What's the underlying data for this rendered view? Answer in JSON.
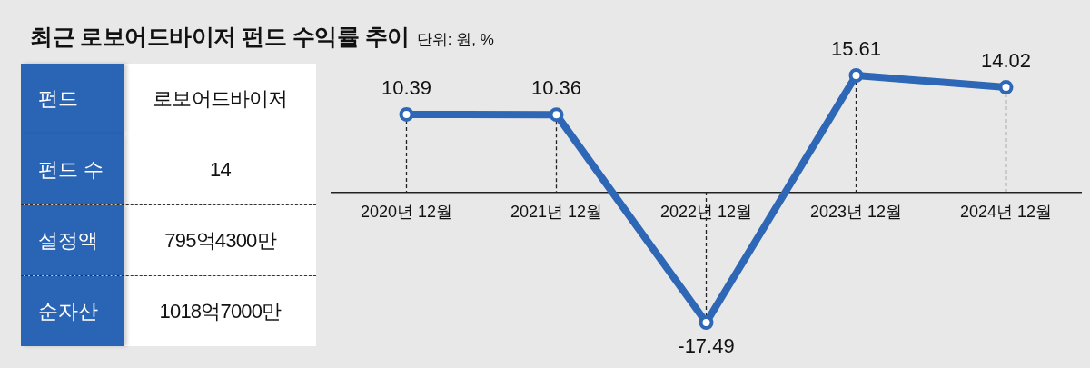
{
  "chart_data": [
    {
      "type": "other",
      "categories": [
        "펀드",
        "펀드 수",
        "설정액",
        "순자산"
      ],
      "value_labels": [
        "로보어드바이저",
        "14",
        "795억4300만",
        "1018억7000만"
      ]
    },
    {
      "type": "line",
      "title": "최근 로보어드바이저 펀드 수익률 추이",
      "subtitle": "단위: 원, %",
      "categories": [
        "2020년 12월",
        "2021년 12월",
        "2022년 12월",
        "2023년 12월",
        "2024년 12월"
      ],
      "values": [
        10.39,
        10.36,
        -17.49,
        15.61,
        14.02
      ],
      "color": "#2e67b5",
      "marker": "circle",
      "data_labels": true
    }
  ]
}
